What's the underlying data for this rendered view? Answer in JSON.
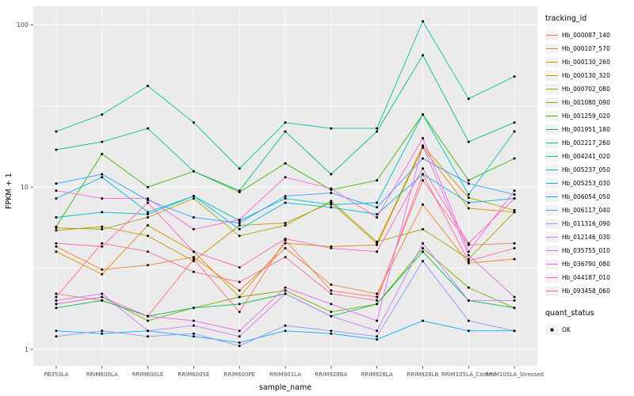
{
  "chart_data": {
    "type": "line",
    "title": "",
    "xlabel": "sample_name",
    "ylabel": "FPKM + 1",
    "y_scale": "log10",
    "y_ticks": [
      1,
      10,
      100
    ],
    "y_minor": [
      3.162,
      31.62
    ],
    "ylim": [
      0.79,
      130
    ],
    "panel_bg": "#EBEBEB",
    "grid_color": "#FFFFFF",
    "point_color": "#000000",
    "tick_text_color": "#4D4D4D",
    "categories": [
      "PB350LA",
      "RRIM600LA",
      "RRIM600LE",
      "RRIM600SE",
      "RRIM600PE",
      "RRIM901LA",
      "RRIM928BA",
      "RRIM928LA",
      "RRIM928LB",
      "RRIM105LA_Control",
      "RRIM105LA_Stressed"
    ],
    "series": [
      {
        "name": "Hb_000087_140",
        "color": "#F8766D",
        "values": [
          2.2,
          2.0,
          1.6,
          3.6,
          1.7,
          4.7,
          2.3,
          2.1,
          11.0,
          4.4,
          4.5
        ]
      },
      {
        "name": "Hb_000107_570",
        "color": "#EA8331",
        "values": [
          4.3,
          3.1,
          3.3,
          3.7,
          2.3,
          4.2,
          2.5,
          2.2,
          7.8,
          3.4,
          3.6
        ]
      },
      {
        "name": "Hb_000130_260",
        "color": "#D89000",
        "values": [
          4.0,
          2.9,
          5.8,
          4.0,
          2.1,
          4.5,
          4.3,
          4.4,
          17.5,
          7.4,
          7.0
        ]
      },
      {
        "name": "Hb_000130_320",
        "color": "#C09B00",
        "values": [
          5.4,
          5.7,
          5.0,
          3.5,
          5.8,
          6.0,
          8.0,
          4.5,
          18.0,
          8.6,
          7.2
        ]
      },
      {
        "name": "Hb_000702_080",
        "color": "#A3A500",
        "values": [
          5.6,
          5.5,
          6.5,
          8.5,
          5.0,
          5.8,
          8.2,
          4.6,
          5.5,
          3.6,
          7.0
        ]
      },
      {
        "name": "Hb_001080_090",
        "color": "#7CAE00",
        "values": [
          1.9,
          2.1,
          1.5,
          1.8,
          2.1,
          2.3,
          1.7,
          1.9,
          4.2,
          2.4,
          1.8
        ]
      },
      {
        "name": "Hb_001259_020",
        "color": "#39B600",
        "values": [
          5.7,
          16.0,
          10.0,
          12.5,
          9.3,
          14.0,
          9.6,
          11.0,
          28.0,
          11.0,
          15.0
        ]
      },
      {
        "name": "Hb_001951_180",
        "color": "#00BB4E",
        "values": [
          1.8,
          2.0,
          1.6,
          1.8,
          1.9,
          2.2,
          1.6,
          1.9,
          4.0,
          2.0,
          1.8
        ]
      },
      {
        "name": "Hb_002217_260",
        "color": "#00BF7D",
        "values": [
          17.0,
          19.0,
          23.0,
          12.5,
          9.5,
          22.0,
          12.0,
          22.0,
          65.0,
          19.0,
          25.0
        ]
      },
      {
        "name": "Hb_004241_020",
        "color": "#00C1A3",
        "values": [
          22.0,
          28.0,
          42.0,
          25.0,
          13.0,
          25.0,
          23.0,
          23.0,
          105.0,
          35.0,
          48.0
        ]
      },
      {
        "name": "Hb_005237_050",
        "color": "#00BFC4",
        "values": [
          6.5,
          7.0,
          6.8,
          8.8,
          6.2,
          8.5,
          7.8,
          8.0,
          28.0,
          9.0,
          22.0
        ]
      },
      {
        "name": "Hb_005253_030",
        "color": "#00BAE0",
        "values": [
          8.5,
          11.5,
          7.0,
          8.8,
          5.5,
          8.0,
          7.5,
          6.8,
          12.0,
          8.0,
          8.5
        ]
      },
      {
        "name": "Hb_006054_050",
        "color": "#00B0F6",
        "values": [
          1.3,
          1.25,
          1.3,
          1.2,
          1.1,
          1.3,
          1.25,
          1.15,
          1.5,
          1.3,
          1.3
        ]
      },
      {
        "name": "Hb_006117_040",
        "color": "#35A2FF",
        "values": [
          10.5,
          12.0,
          8.3,
          6.5,
          6.0,
          8.8,
          9.2,
          7.5,
          15.0,
          10.5,
          9.0
        ]
      },
      {
        "name": "Hb_011316_090",
        "color": "#9590FF",
        "values": [
          1.2,
          1.3,
          1.2,
          1.25,
          1.05,
          1.4,
          1.3,
          1.2,
          3.5,
          1.5,
          1.3
        ]
      },
      {
        "name": "Hb_012146_030",
        "color": "#C77CFF",
        "values": [
          2.0,
          2.2,
          1.3,
          1.4,
          1.2,
          2.2,
          1.6,
          1.3,
          4.5,
          2.0,
          2.0
        ]
      },
      {
        "name": "Hb_035755_010",
        "color": "#E76BF3",
        "values": [
          1.9,
          2.1,
          1.6,
          1.5,
          1.3,
          2.4,
          1.9,
          1.5,
          18.0,
          3.8,
          2.1
        ]
      },
      {
        "name": "Hb_036790_080",
        "color": "#FA62DB",
        "values": [
          9.5,
          8.5,
          8.5,
          5.5,
          6.3,
          11.5,
          9.8,
          6.5,
          20.0,
          4.0,
          9.5
        ]
      },
      {
        "name": "Hb_044187_010",
        "color": "#FF62BC",
        "values": [
          4.5,
          4.3,
          8.0,
          4.0,
          3.2,
          4.8,
          4.2,
          4.0,
          13.0,
          4.5,
          8.5
        ]
      },
      {
        "name": "Hb_093458_060",
        "color": "#FF6A98",
        "values": [
          2.1,
          4.5,
          4.0,
          3.0,
          2.6,
          3.7,
          2.2,
          2.0,
          12.0,
          3.5,
          4.2
        ]
      }
    ]
  },
  "legend": {
    "tracking_title": "tracking_id",
    "quant_title": "quant_status",
    "quant_items": [
      {
        "label": "OK",
        "color": "#000000"
      }
    ]
  }
}
